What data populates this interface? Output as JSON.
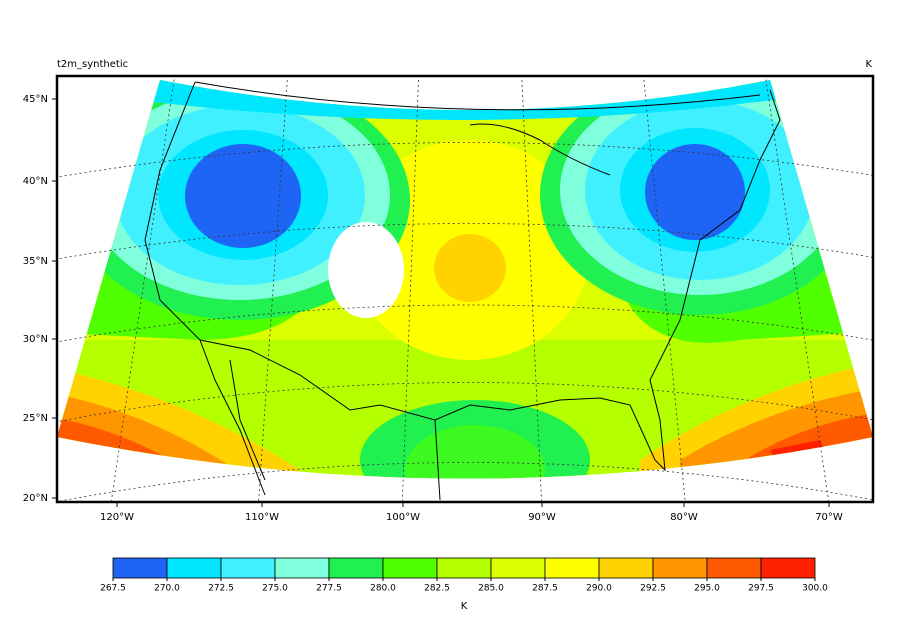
{
  "map": {
    "title": "t2m_synthetic",
    "units": "K",
    "lat_labels": [
      "45°N",
      "40°N",
      "35°N",
      "30°N",
      "25°N",
      "20°N"
    ],
    "lon_labels": [
      "120°W",
      "110°W",
      "100°W",
      "90°W",
      "80°W",
      "70°W"
    ]
  },
  "colorbar": {
    "label": "K",
    "ticks": [
      267.5,
      270,
      272.5,
      275,
      277.5,
      280,
      282.5,
      285,
      287.5,
      290,
      292.5,
      295,
      297.5,
      300
    ],
    "tick_labels": [
      "267.5",
      "270.0",
      "272.5",
      "275.0",
      "277.5",
      "280.0",
      "282.5",
      "285.0",
      "287.5",
      "290.0",
      "292.5",
      "295.0",
      "297.5",
      "300.0"
    ],
    "colors": [
      "#1e64f5",
      "#00e6ff",
      "#40f0ff",
      "#80ffdc",
      "#20f050",
      "#50ff00",
      "#b4ff00",
      "#dcff00",
      "#ffff00",
      "#ffd200",
      "#ff9600",
      "#ff5a00",
      "#ff2000"
    ]
  }
}
